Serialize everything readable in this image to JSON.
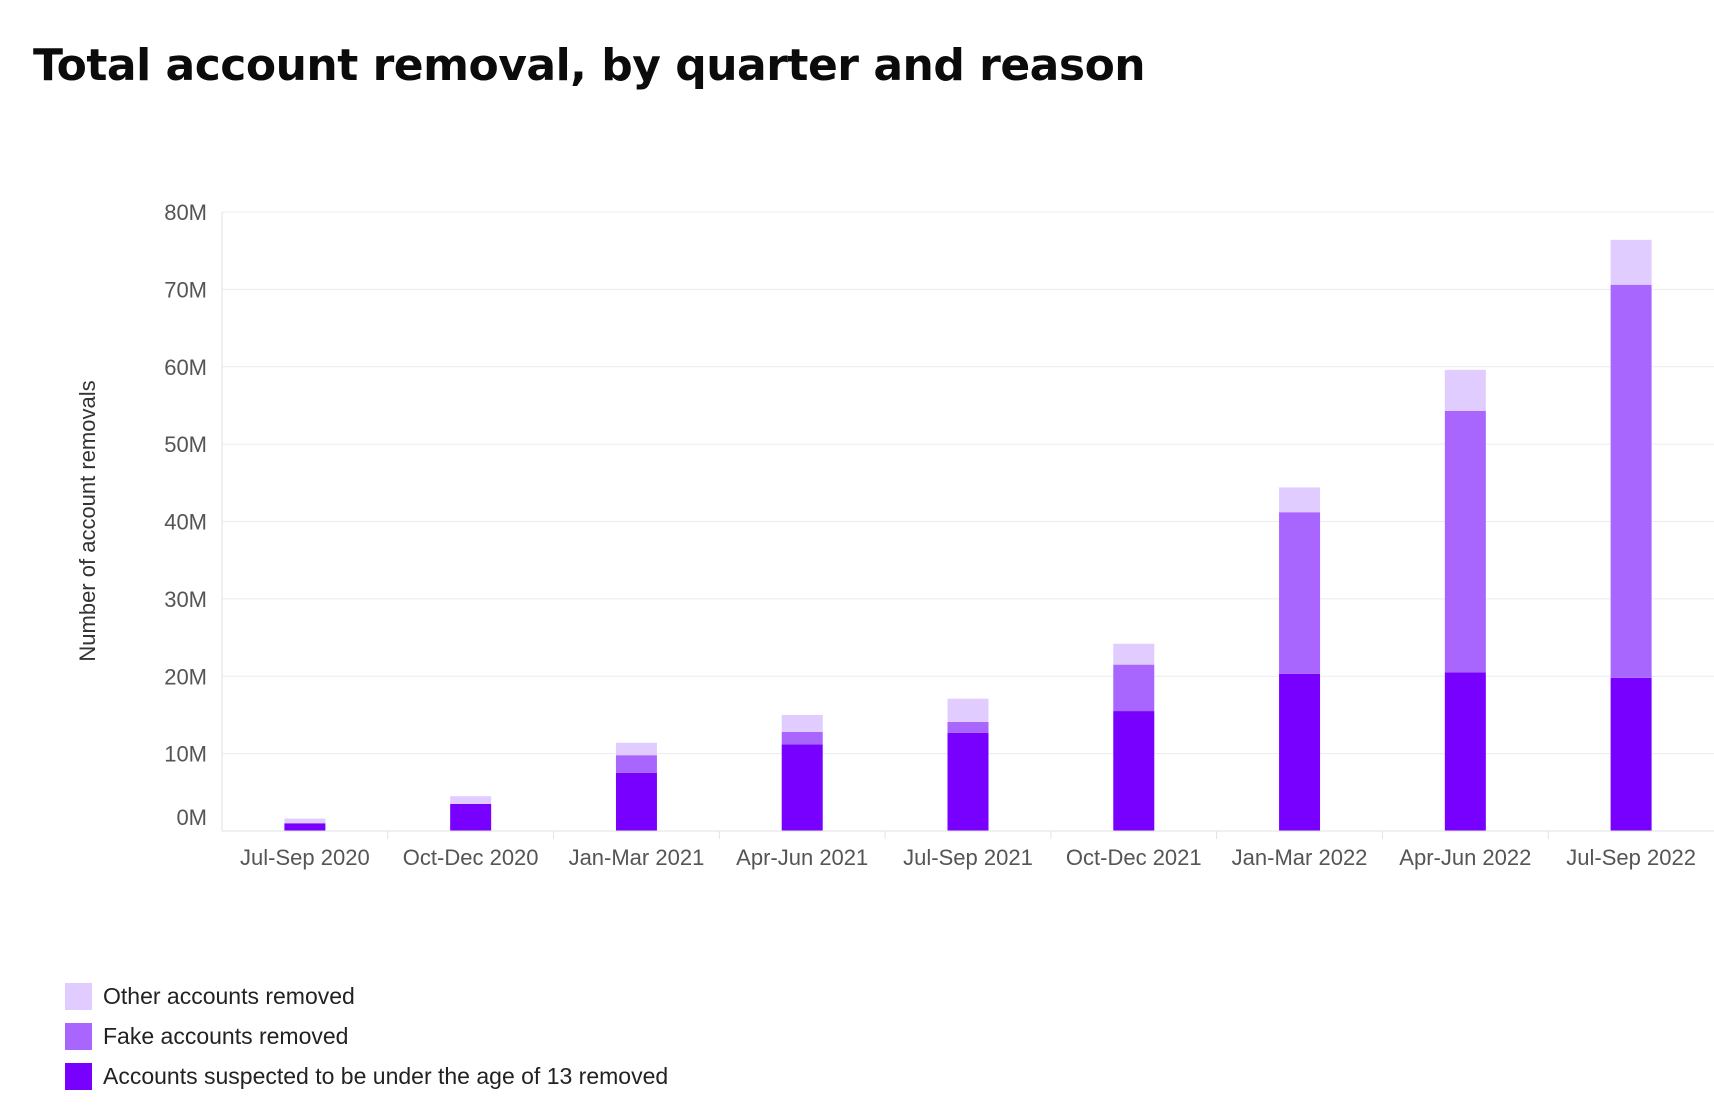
{
  "chart_data": {
    "type": "bar",
    "stacked": true,
    "title": "Total account removal, by quarter and reason",
    "ylabel": "Number of account removals",
    "xlabel": "",
    "categories": [
      "Jul-Sep 2020",
      "Oct-Dec 2020",
      "Jan-Mar 2021",
      "Apr-Jun 2021",
      "Jul-Sep 2021",
      "Oct-Dec 2021",
      "Jan-Mar 2022",
      "Apr-Jun 2022",
      "Jul-Sep 2022"
    ],
    "yticks": [
      "0M",
      "10M",
      "20M",
      "30M",
      "40M",
      "50M",
      "60M",
      "70M",
      "80M"
    ],
    "ylim": [
      0,
      80
    ],
    "grid": true,
    "legend_position": "bottom-left",
    "series": [
      {
        "name": "Accounts suspected to be under the age of 13 removed",
        "color": "#7700ff",
        "values": [
          1.0,
          3.5,
          7.5,
          11.2,
          12.7,
          15.5,
          20.3,
          20.5,
          19.8
        ]
      },
      {
        "name": "Fake accounts removed",
        "color": "#a966ff",
        "values": [
          0.0,
          0.0,
          2.3,
          1.6,
          1.4,
          6.0,
          20.9,
          33.8,
          50.8
        ]
      },
      {
        "name": "Other accounts removed",
        "color": "#e0ccff",
        "values": [
          0.6,
          1.0,
          1.6,
          2.2,
          3.0,
          2.7,
          3.2,
          5.3,
          5.8
        ]
      }
    ]
  },
  "legend": {
    "items": [
      {
        "label": "Other accounts removed",
        "color": "#e0ccff"
      },
      {
        "label": "Fake accounts removed",
        "color": "#a966ff"
      },
      {
        "label": "Accounts suspected to be under the age of 13 removed",
        "color": "#7700ff"
      }
    ]
  }
}
